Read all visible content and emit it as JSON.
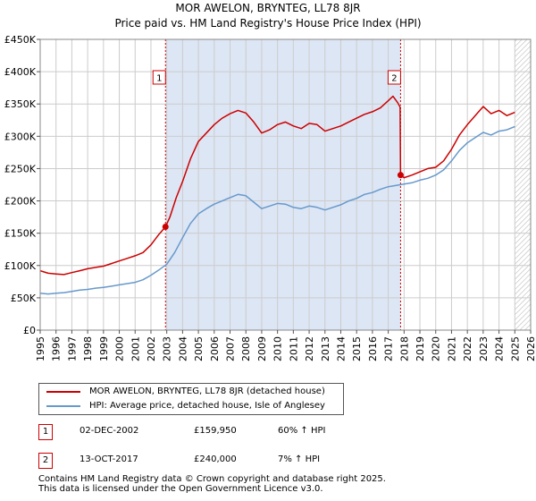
{
  "header": {
    "title_line1": "MOR AWELON, BRYNTEG, LL78 8JR",
    "title_line2": "Price paid vs. HM Land Registry's House Price Index (HPI)"
  },
  "colors": {
    "property": "#cc0000",
    "hpi": "#6699cc",
    "shade": "#dde6f5",
    "grid": "#cccccc",
    "marker_line": "#cc0000"
  },
  "legend": {
    "items": [
      {
        "label": "MOR AWELON, BRYNTEG, LL78 8JR (detached house)",
        "color": "#cc0000"
      },
      {
        "label": "HPI: Average price, detached house, Isle of Anglesey",
        "color": "#6699cc"
      }
    ]
  },
  "annotations": [
    {
      "id": "1",
      "date": "02-DEC-2002",
      "price": "£159,950",
      "hpi_change": "60% ↑ HPI"
    },
    {
      "id": "2",
      "date": "13-OCT-2017",
      "price": "£240,000",
      "hpi_change": "7% ↑ HPI"
    }
  ],
  "footer": {
    "line1": "Contains HM Land Registry data © Crown copyright and database right 2025.",
    "line2": "This data is licensed under the Open Government Licence v3.0."
  },
  "chart_data": {
    "type": "line",
    "title": "Price paid vs. HM Land Registry's House Price Index (HPI)",
    "xlabel": "",
    "ylabel": "",
    "xlim": [
      1995,
      2026
    ],
    "ylim": [
      0,
      450000
    ],
    "x_ticks": [
      1995,
      1996,
      1997,
      1998,
      1999,
      2000,
      2001,
      2002,
      2003,
      2004,
      2005,
      2006,
      2007,
      2008,
      2009,
      2010,
      2011,
      2012,
      2013,
      2014,
      2015,
      2016,
      2017,
      2018,
      2019,
      2020,
      2021,
      2022,
      2023,
      2024,
      2025,
      2026
    ],
    "y_ticks": [
      0,
      50000,
      100000,
      150000,
      200000,
      250000,
      300000,
      350000,
      400000,
      450000
    ],
    "y_tick_labels": [
      "£0",
      "£50K",
      "£100K",
      "£150K",
      "£200K",
      "£250K",
      "£300K",
      "£350K",
      "£400K",
      "£450K"
    ],
    "grid": true,
    "shaded_ranges": [
      [
        2002.92,
        2017.78
      ]
    ],
    "hatched_range": [
      2025.0,
      2026.0
    ],
    "sales": [
      {
        "id": "1",
        "x": 2002.92,
        "y": 159950
      },
      {
        "id": "2",
        "x": 2017.78,
        "y": 240000
      }
    ],
    "series": [
      {
        "name": "MOR AWELON, BRYNTEG, LL78 8JR (detached house)",
        "color": "#cc0000",
        "points": [
          [
            1995.0,
            92000
          ],
          [
            1995.5,
            88000
          ],
          [
            1996.0,
            87000
          ],
          [
            1996.5,
            86000
          ],
          [
            1997.0,
            89000
          ],
          [
            1997.5,
            92000
          ],
          [
            1998.0,
            95000
          ],
          [
            1998.5,
            97000
          ],
          [
            1999.0,
            99000
          ],
          [
            1999.5,
            103000
          ],
          [
            2000.0,
            107000
          ],
          [
            2000.5,
            111000
          ],
          [
            2001.0,
            115000
          ],
          [
            2001.5,
            120000
          ],
          [
            2002.0,
            132000
          ],
          [
            2002.5,
            148000
          ],
          [
            2002.92,
            159950
          ],
          [
            2003.2,
            175000
          ],
          [
            2003.6,
            205000
          ],
          [
            2004.0,
            230000
          ],
          [
            2004.5,
            265000
          ],
          [
            2005.0,
            292000
          ],
          [
            2005.5,
            305000
          ],
          [
            2006.0,
            318000
          ],
          [
            2006.5,
            328000
          ],
          [
            2007.0,
            335000
          ],
          [
            2007.5,
            340000
          ],
          [
            2008.0,
            336000
          ],
          [
            2008.5,
            322000
          ],
          [
            2009.0,
            305000
          ],
          [
            2009.5,
            310000
          ],
          [
            2010.0,
            318000
          ],
          [
            2010.5,
            322000
          ],
          [
            2011.0,
            316000
          ],
          [
            2011.5,
            312000
          ],
          [
            2012.0,
            320000
          ],
          [
            2012.5,
            318000
          ],
          [
            2013.0,
            308000
          ],
          [
            2013.5,
            312000
          ],
          [
            2014.0,
            316000
          ],
          [
            2014.5,
            322000
          ],
          [
            2015.0,
            328000
          ],
          [
            2015.5,
            334000
          ],
          [
            2016.0,
            338000
          ],
          [
            2016.5,
            344000
          ],
          [
            2017.0,
            355000
          ],
          [
            2017.3,
            362000
          ],
          [
            2017.6,
            352000
          ],
          [
            2017.75,
            345000
          ],
          [
            2017.78,
            240000
          ],
          [
            2018.0,
            236000
          ],
          [
            2018.5,
            240000
          ],
          [
            2019.0,
            245000
          ],
          [
            2019.5,
            250000
          ],
          [
            2020.0,
            252000
          ],
          [
            2020.5,
            262000
          ],
          [
            2021.0,
            280000
          ],
          [
            2021.5,
            302000
          ],
          [
            2022.0,
            318000
          ],
          [
            2022.5,
            332000
          ],
          [
            2023.0,
            346000
          ],
          [
            2023.5,
            335000
          ],
          [
            2024.0,
            340000
          ],
          [
            2024.5,
            332000
          ],
          [
            2025.0,
            337000
          ]
        ]
      },
      {
        "name": "HPI: Average price, detached house, Isle of Anglesey",
        "color": "#6699cc",
        "points": [
          [
            1995.0,
            57000
          ],
          [
            1995.5,
            56000
          ],
          [
            1996.0,
            57000
          ],
          [
            1996.5,
            58000
          ],
          [
            1997.0,
            60000
          ],
          [
            1997.5,
            62000
          ],
          [
            1998.0,
            63000
          ],
          [
            1998.5,
            65000
          ],
          [
            1999.0,
            66000
          ],
          [
            1999.5,
            68000
          ],
          [
            2000.0,
            70000
          ],
          [
            2000.5,
            72000
          ],
          [
            2001.0,
            74000
          ],
          [
            2001.5,
            78000
          ],
          [
            2002.0,
            85000
          ],
          [
            2002.5,
            93000
          ],
          [
            2003.0,
            102000
          ],
          [
            2003.5,
            120000
          ],
          [
            2004.0,
            143000
          ],
          [
            2004.5,
            165000
          ],
          [
            2005.0,
            180000
          ],
          [
            2005.5,
            188000
          ],
          [
            2006.0,
            195000
          ],
          [
            2006.5,
            200000
          ],
          [
            2007.0,
            205000
          ],
          [
            2007.5,
            210000
          ],
          [
            2008.0,
            208000
          ],
          [
            2008.5,
            198000
          ],
          [
            2009.0,
            188000
          ],
          [
            2009.5,
            192000
          ],
          [
            2010.0,
            196000
          ],
          [
            2010.5,
            195000
          ],
          [
            2011.0,
            190000
          ],
          [
            2011.5,
            188000
          ],
          [
            2012.0,
            192000
          ],
          [
            2012.5,
            190000
          ],
          [
            2013.0,
            186000
          ],
          [
            2013.5,
            190000
          ],
          [
            2014.0,
            194000
          ],
          [
            2014.5,
            200000
          ],
          [
            2015.0,
            204000
          ],
          [
            2015.5,
            210000
          ],
          [
            2016.0,
            213000
          ],
          [
            2016.5,
            218000
          ],
          [
            2017.0,
            222000
          ],
          [
            2017.5,
            224000
          ],
          [
            2018.0,
            226000
          ],
          [
            2018.5,
            228000
          ],
          [
            2019.0,
            232000
          ],
          [
            2019.5,
            235000
          ],
          [
            2020.0,
            240000
          ],
          [
            2020.5,
            248000
          ],
          [
            2021.0,
            262000
          ],
          [
            2021.5,
            278000
          ],
          [
            2022.0,
            290000
          ],
          [
            2022.5,
            298000
          ],
          [
            2023.0,
            306000
          ],
          [
            2023.5,
            302000
          ],
          [
            2024.0,
            308000
          ],
          [
            2024.5,
            310000
          ],
          [
            2025.0,
            315000
          ]
        ]
      }
    ]
  }
}
